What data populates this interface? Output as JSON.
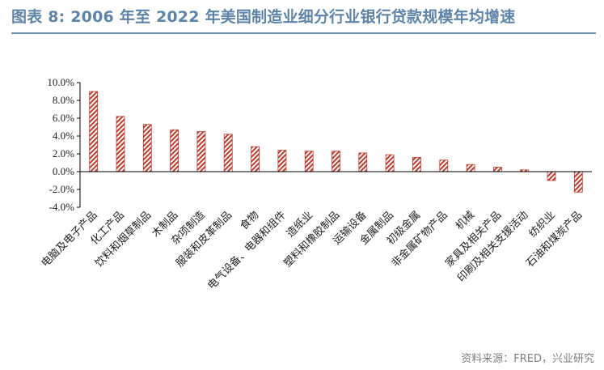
{
  "title": "图表 8:  2006 年至 2022 年美国制造业细分行业银行贷款规模年均增速",
  "source": "资料来源：FRED，兴业研究",
  "colors": {
    "bar": "#c0392b",
    "title": "#5f84a8",
    "axis": "#000000"
  },
  "chart_data": {
    "type": "bar",
    "title": "图表 8:  2006 年至 2022 年美国制造业细分行业银行贷款规模年均增速",
    "xlabel": "",
    "ylabel": "",
    "ylim": [
      -4.0,
      10.0
    ],
    "yticks": [
      -4.0,
      -2.0,
      0.0,
      2.0,
      4.0,
      6.0,
      8.0,
      10.0
    ],
    "ytick_labels": [
      "-4.0%",
      "-2.0%",
      "0.0%",
      "2.0%",
      "4.0%",
      "6.0%",
      "8.0%",
      "10.0%"
    ],
    "grid": false,
    "legend": "none",
    "unit": "%",
    "categories": [
      "电脑及电子产品",
      "化工产品",
      "饮料和烟草制品",
      "木制品",
      "杂项制造",
      "服装和皮革制品",
      "食物",
      "电气设备、电器和组件",
      "造纸业",
      "塑料和橡胶制品",
      "运输设备",
      "金属制品",
      "初级金属",
      "非金属矿物产品",
      "机械",
      "家具及相关产品",
      "印刷及相关支援活动",
      "纺织业",
      "石油和煤炭产品"
    ],
    "values": [
      9.0,
      6.2,
      5.3,
      4.7,
      4.5,
      4.2,
      2.8,
      2.4,
      2.3,
      2.3,
      2.1,
      1.9,
      1.6,
      1.3,
      0.8,
      0.5,
      0.2,
      -1.0,
      -2.3
    ]
  }
}
